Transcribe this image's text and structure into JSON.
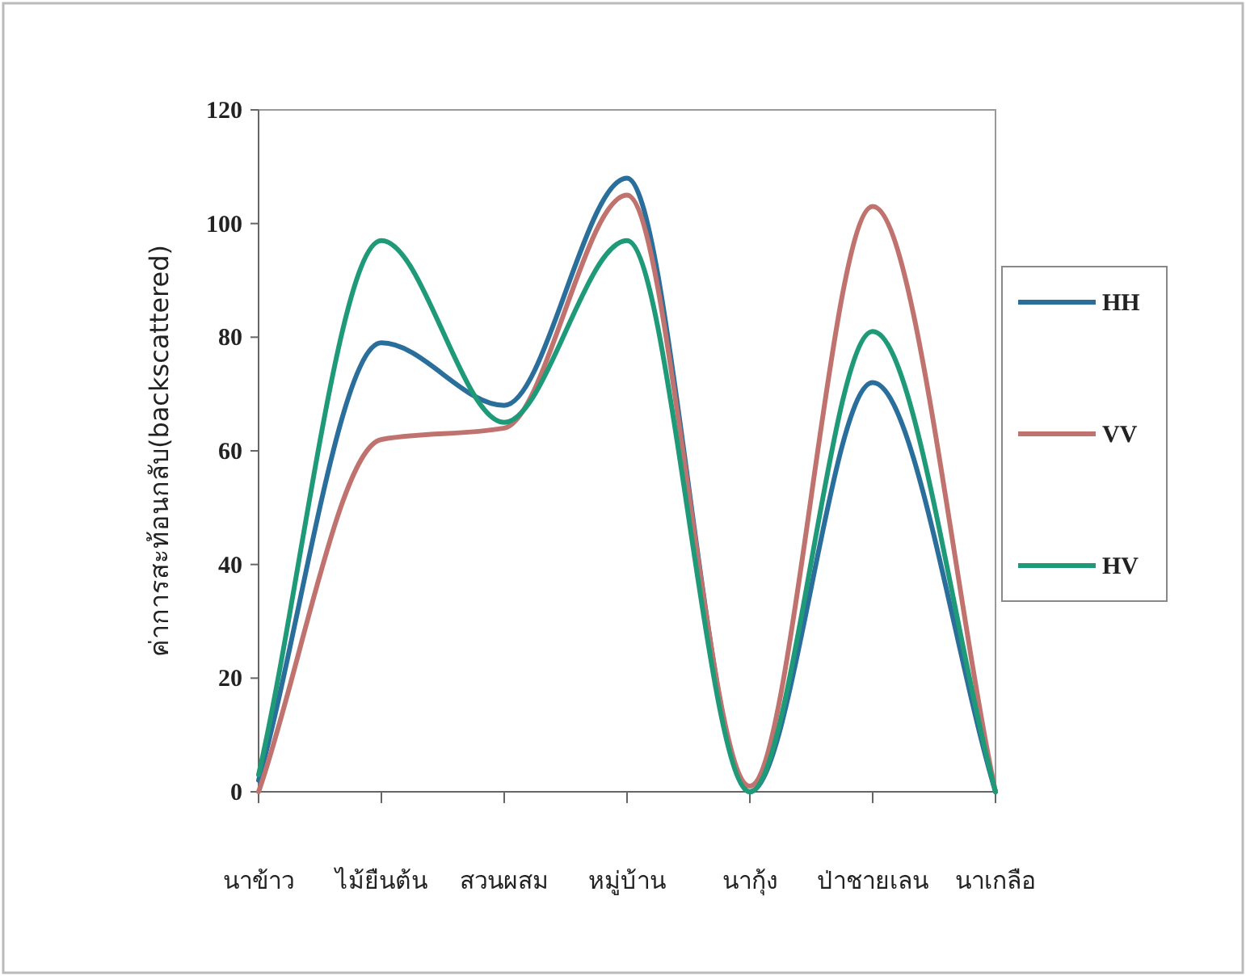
{
  "chart_data": {
    "type": "line",
    "ylabel": "ค่าการสะท้อนกลับ(backscattered)",
    "categories": [
      "นาข้าว",
      "ไม้ยืนต้น",
      "สวนผสม",
      "หมู่บ้าน",
      "นากุ้ง",
      "ป่าชายเลน",
      "นาเกลือ"
    ],
    "series": [
      {
        "name": "HH",
        "color": "#2a6f9c",
        "values": [
          2,
          79,
          68,
          108,
          0,
          72,
          0
        ]
      },
      {
        "name": "VV",
        "color": "#c0736e",
        "values": [
          0,
          62,
          64,
          105,
          1,
          103,
          0
        ]
      },
      {
        "name": "HV",
        "color": "#1f9a78",
        "values": [
          3,
          97,
          65,
          97,
          0,
          81,
          0
        ]
      }
    ],
    "ylim": [
      0,
      120
    ],
    "yticks": [
      0,
      20,
      40,
      60,
      80,
      100,
      120
    ],
    "legend": "right"
  }
}
